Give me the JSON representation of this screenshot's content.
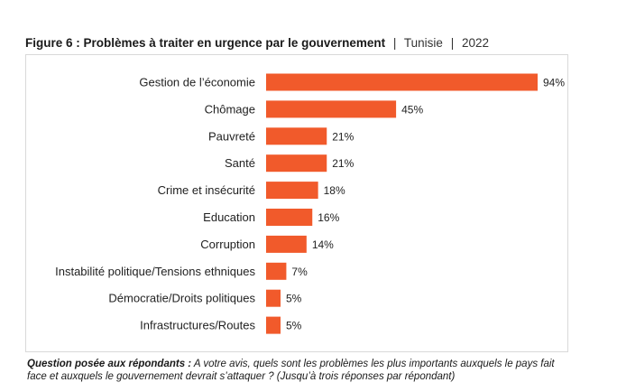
{
  "title": {
    "main": "Figure 6 : Problèmes à traiter en urgence par le gouvernement",
    "separator": "|",
    "country": "Tunisie",
    "year": "2022"
  },
  "chart_data": {
    "type": "bar",
    "orientation": "horizontal",
    "categories": [
      "Gestion de l’économie",
      "Chômage",
      "Pauvreté",
      "Santé",
      "Crime et insécurité",
      "Education",
      "Corruption",
      "Instabilité politique/Tensions ethniques",
      "Démocratie/Droits politiques",
      "Infrastructures/Routes"
    ],
    "values": [
      94,
      45,
      21,
      21,
      18,
      16,
      14,
      7,
      5,
      5
    ],
    "value_labels": [
      "94%",
      "45%",
      "21%",
      "21%",
      "18%",
      "16%",
      "14%",
      "7%",
      "5%",
      "5%"
    ],
    "unit": "%",
    "bar_color": "#f15a2b",
    "grid": false,
    "legend": "none"
  },
  "footnote": {
    "label": "Question posée aux répondants :",
    "text": " A votre avis, quels sont les problèmes les plus importants auxquels le pays fait face et auxquels le gouvernement devrait s’attaquer ? (Jusqu’à trois réponses par répondant)"
  }
}
